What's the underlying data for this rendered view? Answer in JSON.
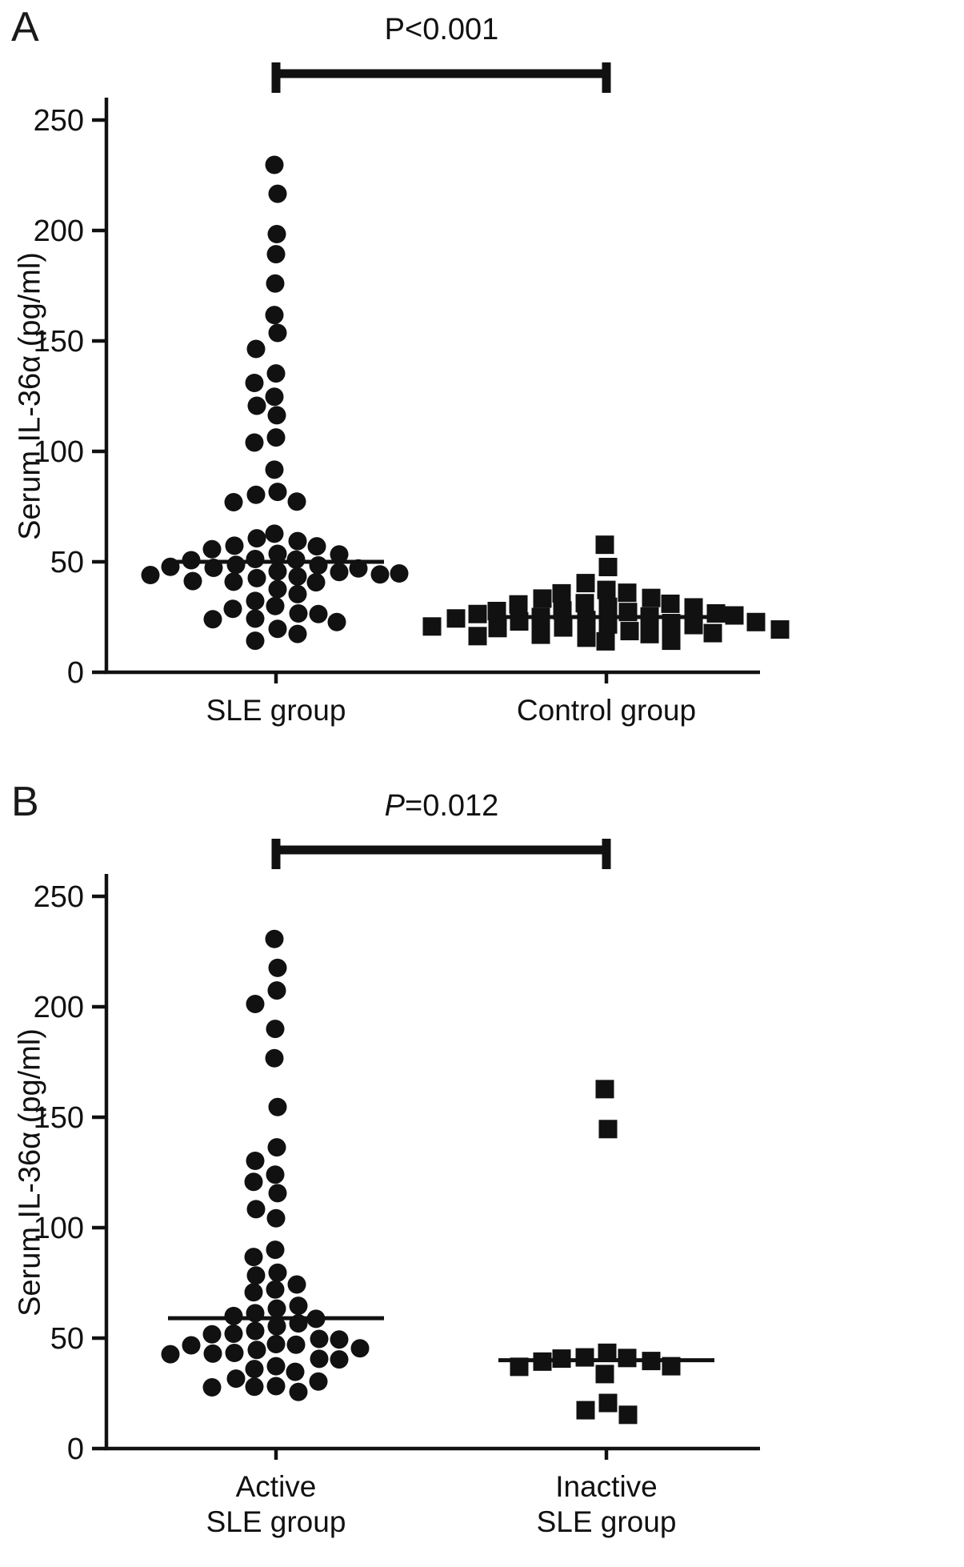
{
  "figure": {
    "background": "#ffffff",
    "ink_color": "#111111"
  },
  "chart_data": [
    {
      "type": "scatter",
      "panel": "A",
      "p_prefix": "P",
      "p_rest": "<0.001",
      "p_italic": false,
      "ylabel": "Serum IL-36α (pg/ml)",
      "ylim": [
        0,
        250
      ],
      "yticks": [
        0,
        50,
        100,
        150,
        200,
        250
      ],
      "legend_position": "none",
      "grid": false,
      "groups": [
        {
          "label": "SLE group",
          "marker": "circle",
          "median": 50,
          "values": [
            229,
            217,
            198,
            190,
            176,
            161,
            154,
            146,
            136,
            131,
            124,
            121,
            116,
            107,
            104,
            91,
            82,
            80,
            78,
            77,
            62,
            61,
            59,
            58,
            57,
            55,
            54,
            53,
            52,
            51,
            50,
            49,
            48,
            48,
            47,
            47,
            46,
            45,
            45,
            44,
            44,
            43,
            43,
            42,
            41,
            40,
            38,
            35,
            33,
            30,
            28,
            27,
            26,
            25,
            24,
            22,
            20,
            17,
            15
          ]
        },
        {
          "label": "Control group",
          "marker": "square",
          "median": 25,
          "values": [
            57,
            48,
            40,
            38,
            36,
            35,
            34,
            33,
            32,
            31,
            30,
            30,
            29,
            28,
            28,
            27,
            27,
            26,
            26,
            25,
            25,
            24,
            24,
            23,
            23,
            22,
            22,
            21,
            21,
            20,
            20,
            19,
            19,
            18,
            17,
            17,
            16,
            16,
            15,
            14
          ]
        }
      ]
    },
    {
      "type": "scatter",
      "panel": "B",
      "p_prefix": "P",
      "p_rest": "=0.012",
      "p_italic": true,
      "ylabel": "Serum IL-36α (pg/ml)",
      "ylim": [
        0,
        250
      ],
      "yticks": [
        0,
        50,
        100,
        150,
        200,
        250
      ],
      "legend_position": "none",
      "grid": false,
      "groups": [
        {
          "label": "Active\nSLE group",
          "marker": "circle",
          "median": 59,
          "values": [
            230,
            218,
            207,
            202,
            190,
            176,
            155,
            136,
            131,
            124,
            120,
            116,
            108,
            105,
            90,
            86,
            80,
            78,
            75,
            72,
            70,
            65,
            63,
            62,
            60,
            58,
            57,
            55,
            54,
            52,
            51,
            50,
            49,
            48,
            47,
            46,
            45,
            45,
            44,
            43,
            42,
            41,
            40,
            38,
            36,
            34,
            32,
            30,
            29,
            28,
            27,
            26
          ]
        },
        {
          "label": "Inactive\nSLE group",
          "marker": "square",
          "median": 40,
          "values": [
            162,
            145,
            43,
            42,
            41,
            40,
            40,
            39,
            38,
            37,
            33,
            21,
            17,
            16
          ]
        }
      ]
    }
  ]
}
